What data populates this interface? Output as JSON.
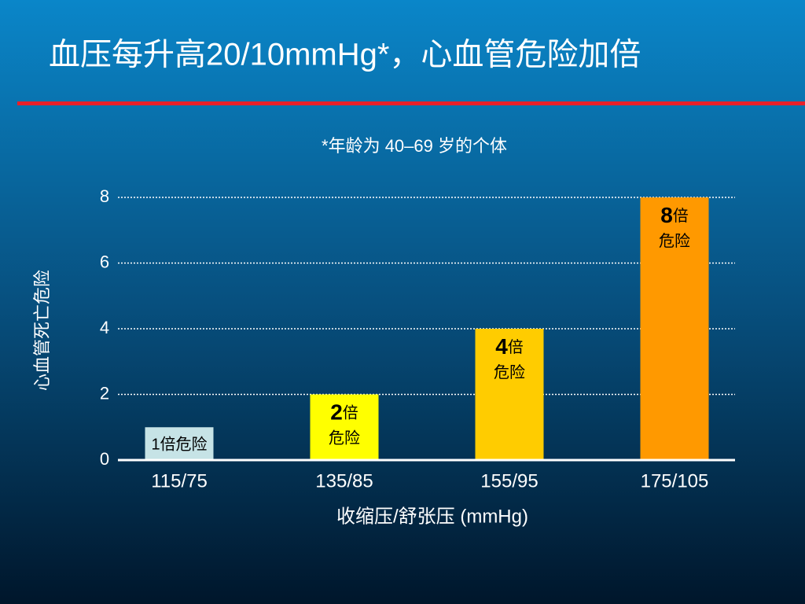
{
  "chart_data": {
    "type": "bar",
    "title": "血压每升高20/10mmHg*，心血管危险加倍",
    "subtitle": "*年龄为 40–69 岁的个体",
    "y_label": "心血管死亡危险",
    "x_label": "收缩压/舒张压 (mmHg)",
    "categories": [
      "115/75",
      "135/85",
      "155/95",
      "175/105"
    ],
    "values": [
      1,
      2,
      4,
      8
    ],
    "value_labels": [
      "1倍危险",
      "2倍危险",
      "4倍危险",
      "8倍危险"
    ],
    "colors": [
      "#c6e3e6",
      "#ffff00",
      "#ffcc00",
      "#ff9900"
    ],
    "ylim": [
      0,
      8
    ],
    "yticks": [
      0,
      2,
      4,
      6,
      8
    ],
    "grid": true
  }
}
